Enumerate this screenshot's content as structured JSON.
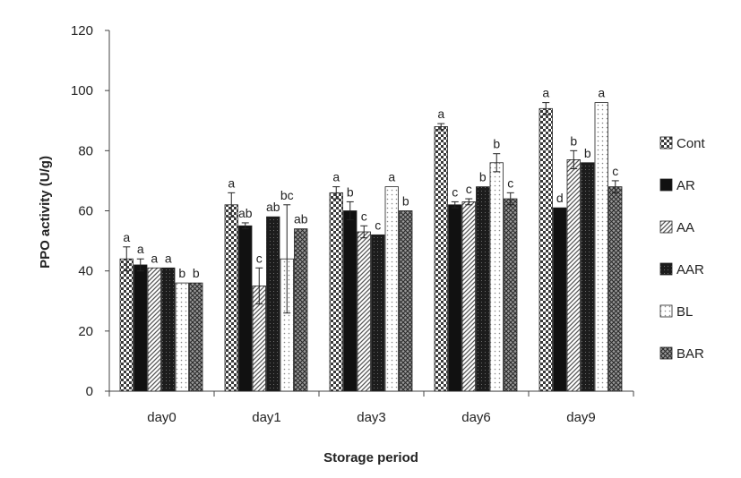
{
  "chart_data": {
    "type": "bar",
    "title": "",
    "xlabel": "Storage period",
    "ylabel": "PPO activity (U/g)",
    "ylim": [
      0,
      120
    ],
    "yticks": [
      0,
      20,
      40,
      60,
      80,
      100,
      120
    ],
    "categories": [
      "day0",
      "day1",
      "day3",
      "day6",
      "day9"
    ],
    "legend_position": "right",
    "grid": false,
    "series": [
      {
        "name": "Cont",
        "pattern": "checker",
        "values": [
          44,
          62,
          66,
          88,
          94
        ],
        "errors": [
          4,
          4,
          2,
          1,
          2
        ],
        "labels": [
          "a",
          "a",
          "a",
          "a",
          "a"
        ]
      },
      {
        "name": "AR",
        "pattern": "solid",
        "values": [
          42,
          55,
          60,
          62,
          61
        ],
        "errors": [
          2,
          1,
          3,
          1,
          0
        ],
        "labels": [
          "a",
          "ab",
          "b",
          "c",
          "d"
        ]
      },
      {
        "name": "AA",
        "pattern": "diagonal",
        "values": [
          41,
          35,
          53,
          63,
          77
        ],
        "errors": [
          0,
          6,
          2,
          1,
          3
        ],
        "labels": [
          "a",
          "c",
          "c",
          "c",
          "b"
        ]
      },
      {
        "name": "AAR",
        "pattern": "dense",
        "values": [
          41,
          58,
          52,
          68,
          76
        ],
        "errors": [
          0,
          0,
          0,
          0,
          0
        ],
        "labels": [
          "a",
          "ab",
          "c",
          "b",
          "b"
        ]
      },
      {
        "name": "BL",
        "pattern": "dots",
        "values": [
          36,
          44,
          68,
          76,
          96
        ],
        "errors": [
          0,
          18,
          0,
          3,
          0
        ],
        "labels": [
          "b",
          "bc",
          "a",
          "b",
          "a"
        ]
      },
      {
        "name": "BAR",
        "pattern": "crosshatch",
        "values": [
          36,
          54,
          60,
          64,
          68
        ],
        "errors": [
          0,
          0,
          0,
          2,
          2
        ],
        "labels": [
          "b",
          "ab",
          "b",
          "c",
          "c"
        ]
      }
    ]
  }
}
